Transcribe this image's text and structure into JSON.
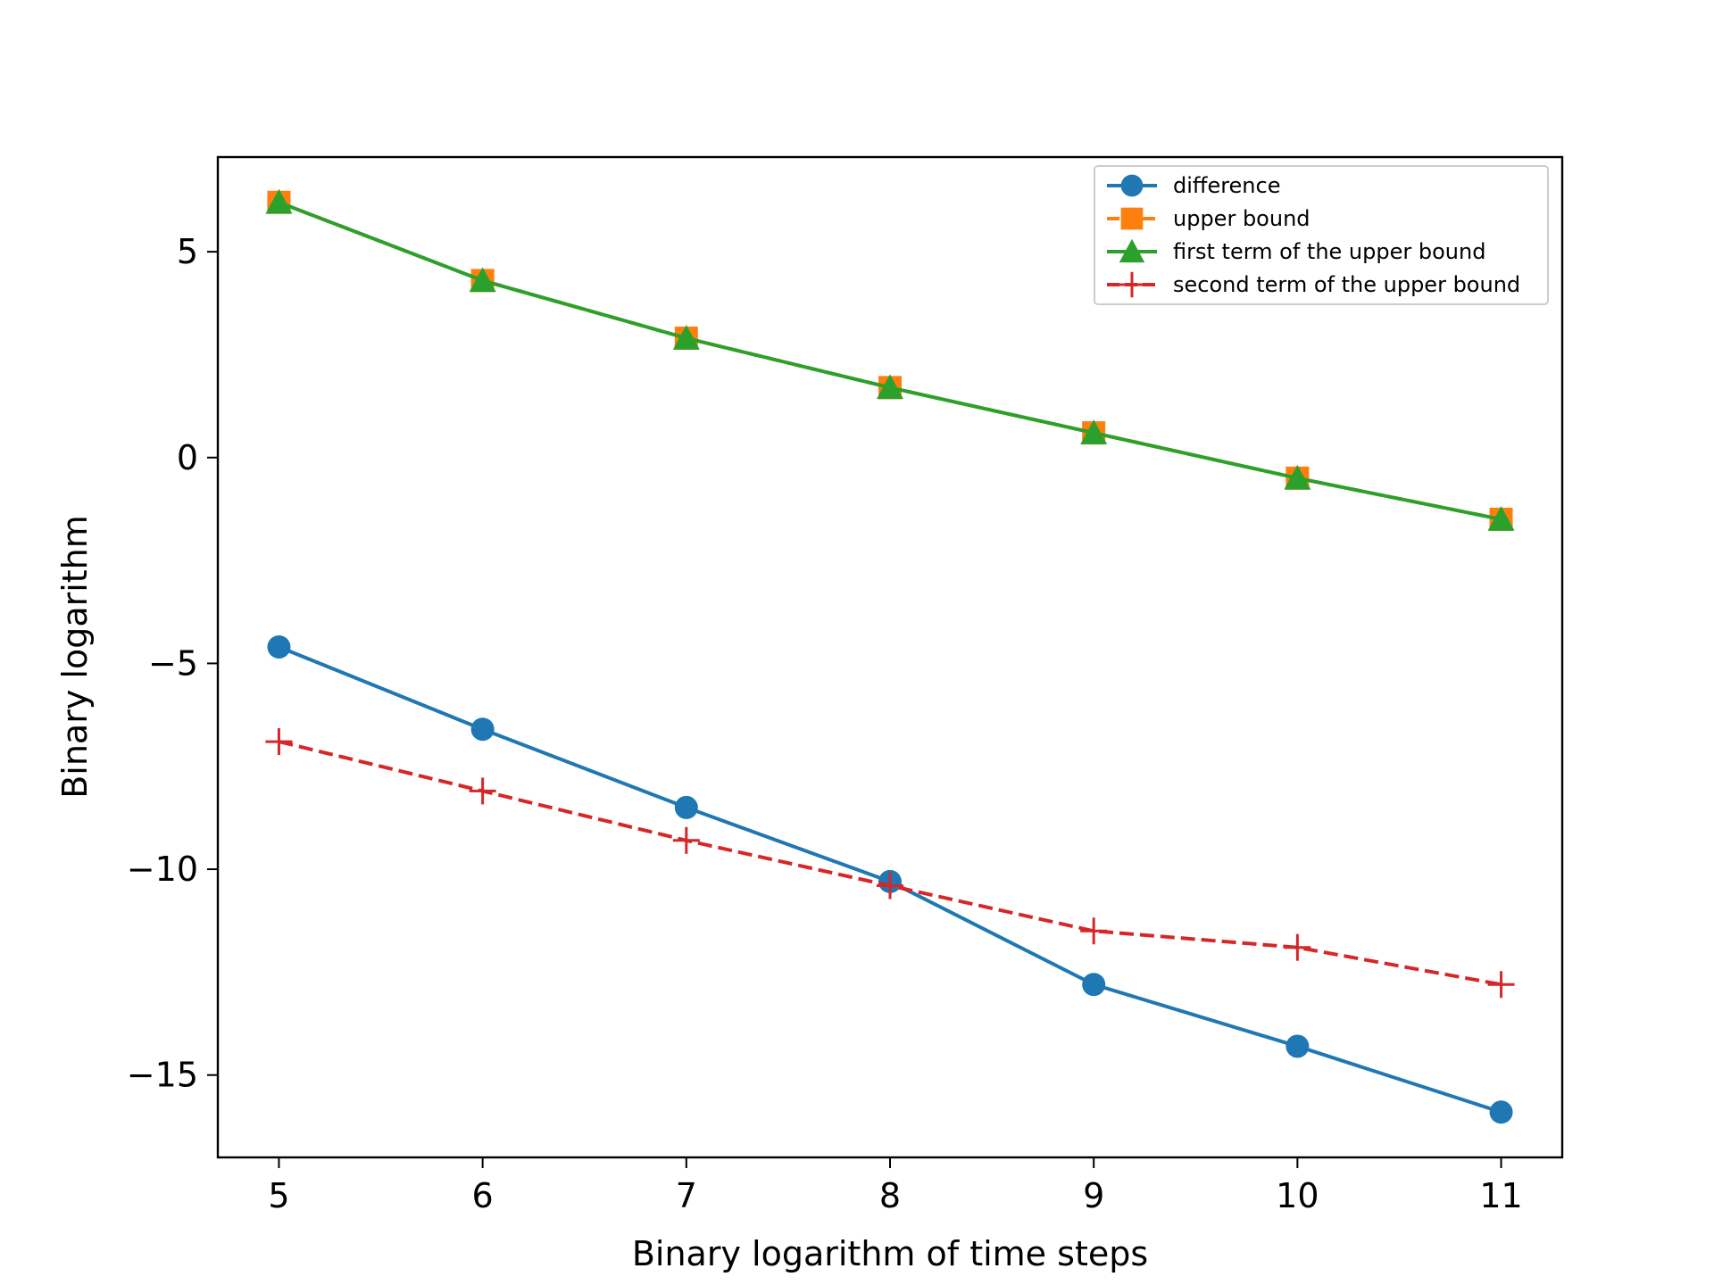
{
  "chart_data": {
    "type": "line",
    "title": "",
    "xlabel": "Binary logarithm of time steps",
    "ylabel": "Binary logarithm",
    "x": [
      5,
      6,
      7,
      8,
      9,
      10,
      11
    ],
    "xlim": [
      4.7,
      11.3
    ],
    "ylim": [
      -17,
      7.3
    ],
    "xticks": [
      5,
      6,
      7,
      8,
      9,
      10,
      11
    ],
    "yticks": [
      -15,
      -10,
      -5,
      0,
      5
    ],
    "ytick_labels": [
      "−15",
      "−10",
      "−5",
      "0",
      "5"
    ],
    "grid": false,
    "legend_position": "upper right",
    "series": [
      {
        "name": "difference",
        "values": [
          -4.6,
          -6.6,
          -8.5,
          -10.3,
          -12.8,
          -14.3,
          -15.9
        ],
        "color": "#1f77b4",
        "marker": "circle",
        "linestyle": "solid"
      },
      {
        "name": "upper bound",
        "values": [
          6.2,
          4.3,
          2.9,
          1.7,
          0.6,
          -0.5,
          -1.5
        ],
        "color": "#ff7f0e",
        "marker": "square",
        "linestyle": "dashed"
      },
      {
        "name": "first term of the upper bound",
        "values": [
          6.2,
          4.3,
          2.9,
          1.7,
          0.6,
          -0.5,
          -1.5
        ],
        "color": "#2ca02c",
        "marker": "triangle",
        "linestyle": "solid"
      },
      {
        "name": "second term of the upper bound",
        "values": [
          -6.9,
          -8.1,
          -9.3,
          -10.4,
          -11.5,
          -11.9,
          -12.8
        ],
        "color": "#d62728",
        "marker": "plus",
        "linestyle": "dashed"
      }
    ]
  }
}
